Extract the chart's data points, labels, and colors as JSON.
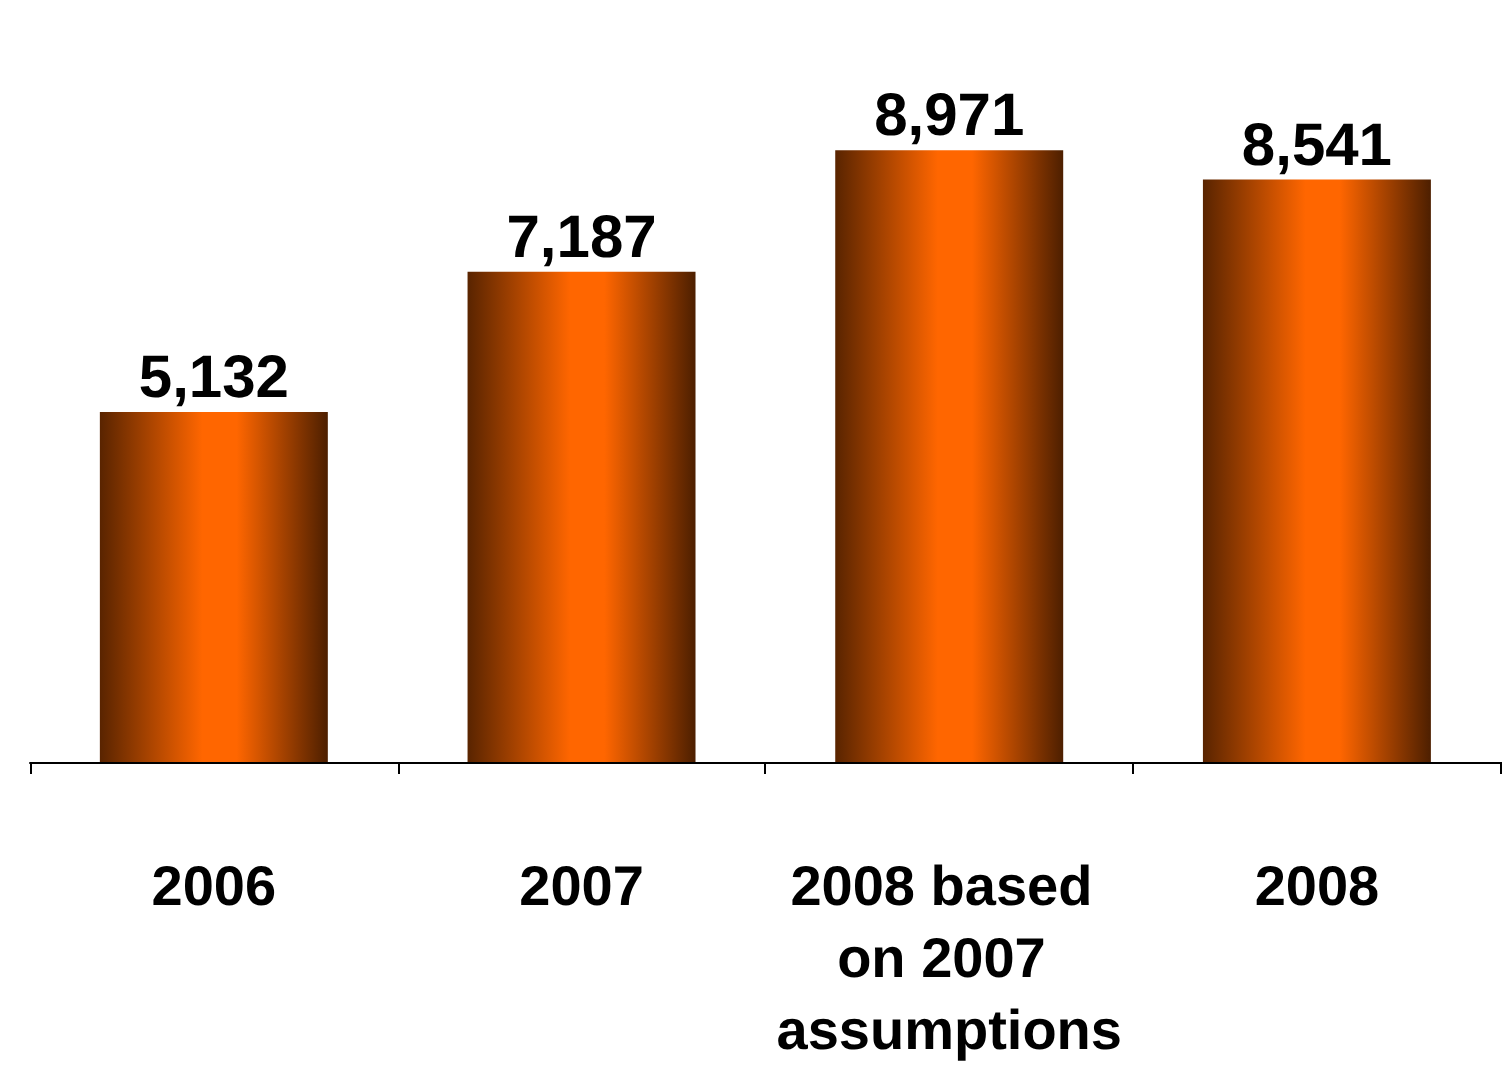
{
  "chart_data": {
    "type": "bar",
    "categories": [
      "2006",
      "2007",
      "2008 based on 2007 assumptions",
      "2008"
    ],
    "values": [
      5132,
      7187,
      8971,
      8541
    ],
    "value_labels": [
      "5,132",
      "7,187",
      "8,971",
      "8,541"
    ],
    "color": "#ff6600",
    "tick_labels": "x"
  }
}
